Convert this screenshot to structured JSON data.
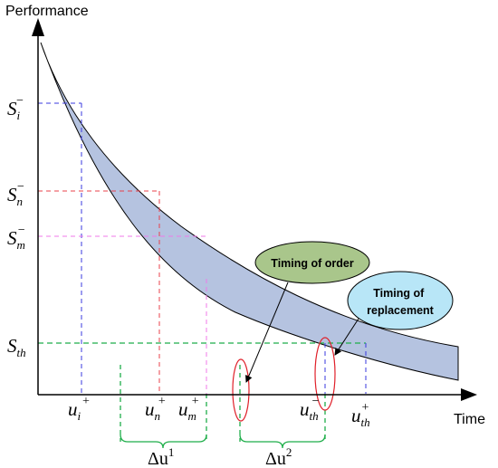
{
  "axes": {
    "y_title": "Performance",
    "x_title": "Time"
  },
  "y_labels": [
    {
      "id": "si",
      "base": "S",
      "sub": "i",
      "sup": "−"
    },
    {
      "id": "sn",
      "base": "S",
      "sub": "n",
      "sup": "−"
    },
    {
      "id": "sm",
      "base": "S",
      "sub": "m",
      "sup": "−"
    },
    {
      "id": "sth",
      "base": "S",
      "sub": "th",
      "sup": ""
    }
  ],
  "x_labels": [
    {
      "id": "ui",
      "base": "u",
      "sub": "i",
      "sup": "+"
    },
    {
      "id": "un",
      "base": "u",
      "sub": "n",
      "sup": "+"
    },
    {
      "id": "um",
      "base": "u",
      "sub": "m",
      "sup": "+"
    },
    {
      "id": "uth_minus",
      "base": "u",
      "sub": "th",
      "sup": "−"
    },
    {
      "id": "uth_plus",
      "base": "u",
      "sub": "th",
      "sup": "+"
    }
  ],
  "intervals": [
    {
      "id": "du1",
      "symbol": "Δu",
      "sup": "1"
    },
    {
      "id": "du2",
      "symbol": "Δu",
      "sup": "2"
    }
  ],
  "callouts": {
    "order": {
      "line1": "Timing of order"
    },
    "replacement": {
      "line1": "Timing of",
      "line2": "replacement"
    }
  },
  "colors": {
    "band_fill": "#b5c3e0",
    "order_bubble": "#a9c68b",
    "replacement_bubble": "#b8e6f7",
    "si_line": "#3a3adf",
    "sn_line": "#e8424b",
    "sm_line": "#f07ae8",
    "sth_line": "#1fae4a",
    "ellipse": "#e0202a"
  }
}
